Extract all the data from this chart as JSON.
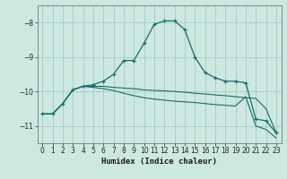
{
  "xlabel": "Humidex (Indice chaleur)",
  "bg_color": "#cce8e0",
  "grid_color": "#aacfca",
  "line_color": "#1a6b6b",
  "xlim": [
    -0.5,
    23.5
  ],
  "ylim": [
    -11.5,
    -7.5
  ],
  "yticks": [
    -11,
    -10,
    -9,
    -8
  ],
  "xticks": [
    0,
    1,
    2,
    3,
    4,
    5,
    6,
    7,
    8,
    9,
    10,
    11,
    12,
    13,
    14,
    15,
    16,
    17,
    18,
    19,
    20,
    21,
    22,
    23
  ],
  "curve1_x": [
    0,
    1,
    2,
    3,
    4,
    5,
    6,
    7,
    8,
    9,
    10,
    11,
    12,
    13,
    14,
    15,
    16,
    17,
    18,
    19,
    20,
    21,
    22,
    23
  ],
  "curve1_y": [
    -10.65,
    -10.65,
    -10.35,
    -9.95,
    -9.85,
    -9.8,
    -9.7,
    -9.5,
    -9.1,
    -9.1,
    -8.6,
    -8.05,
    -7.95,
    -7.95,
    -8.2,
    -9.0,
    -9.45,
    -9.6,
    -9.7,
    -9.7,
    -9.75,
    -10.8,
    -10.85,
    -11.2
  ],
  "curve2_x": [
    0,
    1,
    2,
    3,
    4,
    5,
    6,
    7,
    8,
    9,
    10,
    11,
    12,
    13,
    14,
    15,
    16,
    17,
    18,
    19,
    20,
    21,
    22,
    23
  ],
  "curve2_y": [
    -10.65,
    -10.65,
    -10.35,
    -9.95,
    -9.85,
    -9.85,
    -9.85,
    -9.88,
    -9.9,
    -9.92,
    -9.95,
    -9.97,
    -9.98,
    -10.0,
    -10.02,
    -10.05,
    -10.07,
    -10.1,
    -10.12,
    -10.15,
    -10.18,
    -10.2,
    -10.5,
    -11.2
  ],
  "curve3_x": [
    0,
    1,
    2,
    3,
    4,
    5,
    6,
    7,
    8,
    9,
    10,
    11,
    12,
    13,
    14,
    15,
    16,
    17,
    18,
    19,
    20,
    21,
    22,
    23
  ],
  "curve3_y": [
    -10.65,
    -10.65,
    -10.35,
    -9.95,
    -9.85,
    -9.88,
    -9.92,
    -9.97,
    -10.05,
    -10.12,
    -10.18,
    -10.22,
    -10.25,
    -10.28,
    -10.3,
    -10.32,
    -10.35,
    -10.38,
    -10.4,
    -10.42,
    -10.15,
    -11.0,
    -11.1,
    -11.35
  ]
}
